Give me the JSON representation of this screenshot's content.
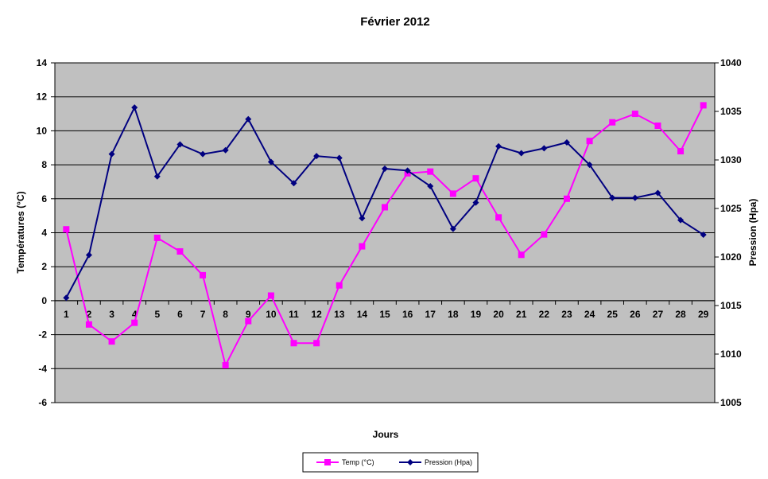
{
  "chart_data": {
    "type": "line",
    "title": "Février 2012",
    "xlabel": "Jours",
    "ylabel_left": "Températures (°C)",
    "ylabel_right": "Pression (Hpa)",
    "categories": [
      "1",
      "2",
      "3",
      "4",
      "5",
      "6",
      "7",
      "8",
      "9",
      "10",
      "11",
      "12",
      "13",
      "14",
      "15",
      "16",
      "17",
      "18",
      "19",
      "20",
      "21",
      "22",
      "23",
      "24",
      "25",
      "26",
      "27",
      "28",
      "29"
    ],
    "y_left": {
      "min": -6,
      "max": 14,
      "ticks": [
        -6,
        -4,
        -2,
        0,
        2,
        4,
        6,
        8,
        10,
        12,
        14
      ]
    },
    "y_right": {
      "min": 1005,
      "max": 1040,
      "ticks": [
        1005,
        1010,
        1015,
        1020,
        1025,
        1030,
        1035,
        1040
      ]
    },
    "series": [
      {
        "name": "Temp (°C)",
        "axis": "left",
        "color": "#ff00ff",
        "marker": "square",
        "values": [
          4.2,
          -1.4,
          -2.4,
          -1.3,
          3.7,
          2.9,
          1.5,
          -3.8,
          -1.2,
          0.3,
          -2.5,
          -2.5,
          0.9,
          3.2,
          5.5,
          7.5,
          7.6,
          6.3,
          7.2,
          4.9,
          2.7,
          3.9,
          6.0,
          9.4,
          10.5,
          11.0,
          10.3,
          8.8,
          11.5
        ]
      },
      {
        "name": "Pression (Hpa)",
        "axis": "right",
        "color": "#000080",
        "marker": "diamond",
        "values": [
          1015.8,
          1020.2,
          1030.6,
          1035.4,
          1028.3,
          1031.6,
          1030.6,
          1031.0,
          1034.2,
          1029.8,
          1027.6,
          1030.4,
          1030.2,
          1024.0,
          1029.1,
          1028.9,
          1027.3,
          1022.9,
          1025.6,
          1031.4,
          1030.7,
          1031.2,
          1031.8,
          1029.5,
          1026.1,
          1026.1,
          1026.6,
          1023.8,
          1022.3
        ]
      }
    ],
    "plot_background": "#c0c0c0",
    "grid": "horizontal",
    "legend_position": "bottom"
  }
}
